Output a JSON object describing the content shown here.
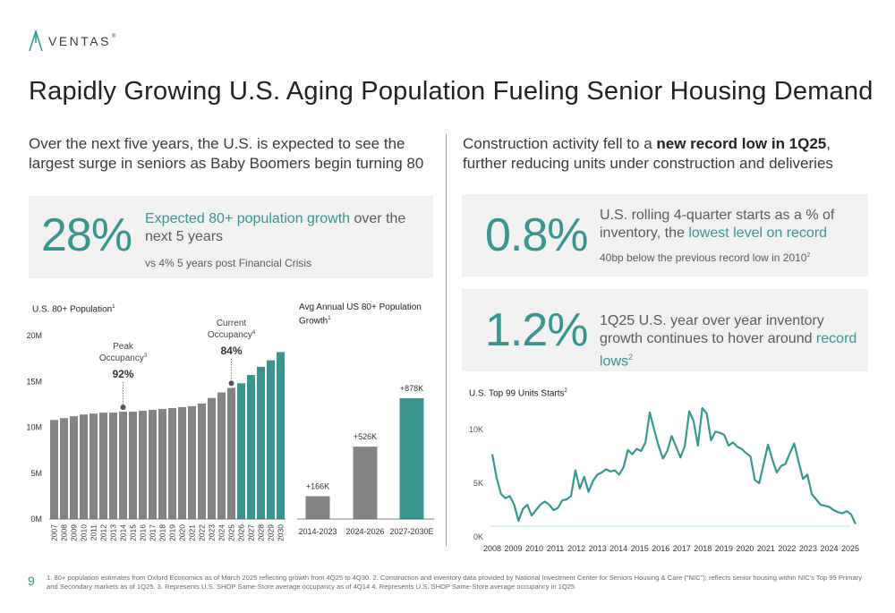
{
  "brand": {
    "name": "VENTAS",
    "mark": "®"
  },
  "title": "Rapidly Growing U.S. Aging Population Fueling Senior Housing Demand",
  "left": {
    "subtitle": "Over the next five years, the U.S. is expected to see the largest surge in seniors as Baby Boomers begin turning 80",
    "kpi": {
      "value": "28%",
      "highlight": "Expected 80+ population growth",
      "rest": " over the next 5 years",
      "note": "vs 4% 5 years post Financial Crisis"
    }
  },
  "right": {
    "subtitle_pre": "Construction activity fell to a ",
    "subtitle_bold": "new record low in 1Q25",
    "subtitle_post": ", further reducing units under construction and deliveries",
    "kpi1": {
      "value": "0.8%",
      "text_pre": "U.S. rolling 4-quarter starts as a % of inventory, the ",
      "text_hl": "lowest level on record",
      "note": "40bp below the previous record low in 2010",
      "note_sup": "2"
    },
    "kpi2": {
      "value": "1.2%",
      "text_pre": "1Q25 U.S. year over year inventory growth continues to hover around ",
      "text_hl": "record lows",
      "text_sup": "2"
    }
  },
  "colors": {
    "teal": "#3a958f",
    "gray_bar": "#848484",
    "box_bg": "#f1f1f1"
  },
  "chart_data": [
    {
      "type": "bar",
      "title": "U.S. 80+ Population",
      "title_sup": "1",
      "categories": [
        "2007",
        "2008",
        "2009",
        "2010",
        "2011",
        "2012",
        "2013",
        "2014",
        "2015",
        "2016",
        "2017",
        "2018",
        "2019",
        "2020",
        "2021",
        "2022",
        "2023",
        "2024",
        "2025",
        "2026",
        "2027",
        "2028",
        "2029",
        "2030"
      ],
      "values": [
        10.8,
        11.0,
        11.2,
        11.4,
        11.5,
        11.6,
        11.6,
        11.7,
        11.7,
        11.8,
        11.9,
        12.0,
        12.1,
        12.2,
        12.3,
        12.6,
        13.2,
        13.8,
        14.3,
        14.8,
        15.7,
        16.6,
        17.3,
        18.2
      ],
      "projected_from": "2026",
      "yticks": [
        "0M",
        "5M",
        "10M",
        "15M",
        "20M"
      ],
      "ylim": [
        0,
        20
      ],
      "annotations": [
        {
          "x": "2014",
          "label": "Peak Occupancy",
          "sup": "3",
          "value": "92%"
        },
        {
          "x": "2025",
          "label": "Current Occupancy",
          "sup": "4",
          "value": "84%"
        }
      ]
    },
    {
      "type": "bar",
      "title": "Avg Annual US 80+ Population Growth",
      "title_sup": "1",
      "categories": [
        "2014-2023",
        "2024-2026",
        "2027-2030E"
      ],
      "values": [
        166,
        526,
        878
      ],
      "labels": [
        "+166K",
        "+526K",
        "+878K"
      ],
      "ylim": [
        0,
        1333
      ]
    },
    {
      "type": "line",
      "title": "U.S. Top 99 Units Starts",
      "title_sup": "2",
      "x_start": 2008,
      "x_end": 2025.25,
      "xticks": [
        "2008",
        "2009",
        "2010",
        "2011",
        "2012",
        "2013",
        "2014",
        "2015",
        "2016",
        "2017",
        "2018",
        "2019",
        "2020",
        "2021",
        "2022",
        "2023",
        "2024",
        "2025"
      ],
      "yticks": [
        "0K",
        "5K",
        "10K"
      ],
      "ylim": [
        0,
        12000
      ],
      "baseline": 1000,
      "values": [
        7700,
        5500,
        4000,
        3600,
        3800,
        3000,
        1500,
        2600,
        3000,
        2000,
        2500,
        3000,
        3300,
        3000,
        2500,
        2700,
        3400,
        3500,
        3800,
        6200,
        4500,
        5600,
        4200,
        5200,
        5800,
        6000,
        6300,
        6100,
        6200,
        5800,
        6500,
        8100,
        7700,
        8200,
        8000,
        8800,
        11600,
        10000,
        8500,
        7300,
        8000,
        9400,
        8400,
        7400,
        8500,
        11700,
        10800,
        8500,
        12000,
        11500,
        9000,
        9800,
        9700,
        9500,
        8500,
        8800,
        8400,
        8200,
        7800,
        7500,
        5300,
        5000,
        6800,
        8600,
        7200,
        6000,
        6600,
        6800,
        7800,
        8700,
        7000,
        5400,
        5800,
        4000,
        3500,
        3000,
        2900,
        2800,
        2500,
        2300,
        2200,
        2400,
        2100,
        1200
      ]
    }
  ],
  "footer": {
    "page": "9",
    "text": "1. 80+ population estimates from Oxford Economics as of March 2025 reflecting growth from 4Q25 to 4Q30. 2. Construction and inventory data provided by National Investment Center for Seniors Housing & Care (\"NIC\"); reflects senior housing within NIC's Top 99 Primary and Secondary markets as of 1Q25. 3. Represents U.S. SHOP Same-Store average occupancy as of 4Q14 4. Represents U.S. SHOP Same-Store average occupancy in 1Q25"
  }
}
